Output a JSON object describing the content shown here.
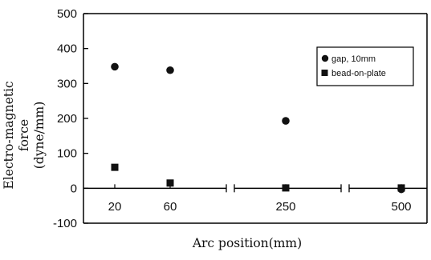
{
  "chart_data": {
    "type": "scatter",
    "ylabel_line1": "Electro-magnetic force",
    "ylabel_line2": "(dyne/mm)",
    "xlabel": "Arc position(mm)",
    "categories": [
      "20",
      "60",
      "250",
      "500"
    ],
    "y_ticks": [
      "500",
      "400",
      "300",
      "200",
      "100",
      "0",
      "-100"
    ],
    "ylim": [
      -100,
      500
    ],
    "x_axis": "broken category axis",
    "grid": false,
    "legend_position": "top-right",
    "series": [
      {
        "name": "gap, 10mm",
        "marker": "circle",
        "values": [
          348,
          338,
          193,
          -3
        ]
      },
      {
        "name": "bead-on-plate",
        "marker": "square",
        "values": [
          60,
          15,
          1,
          1
        ]
      }
    ]
  }
}
